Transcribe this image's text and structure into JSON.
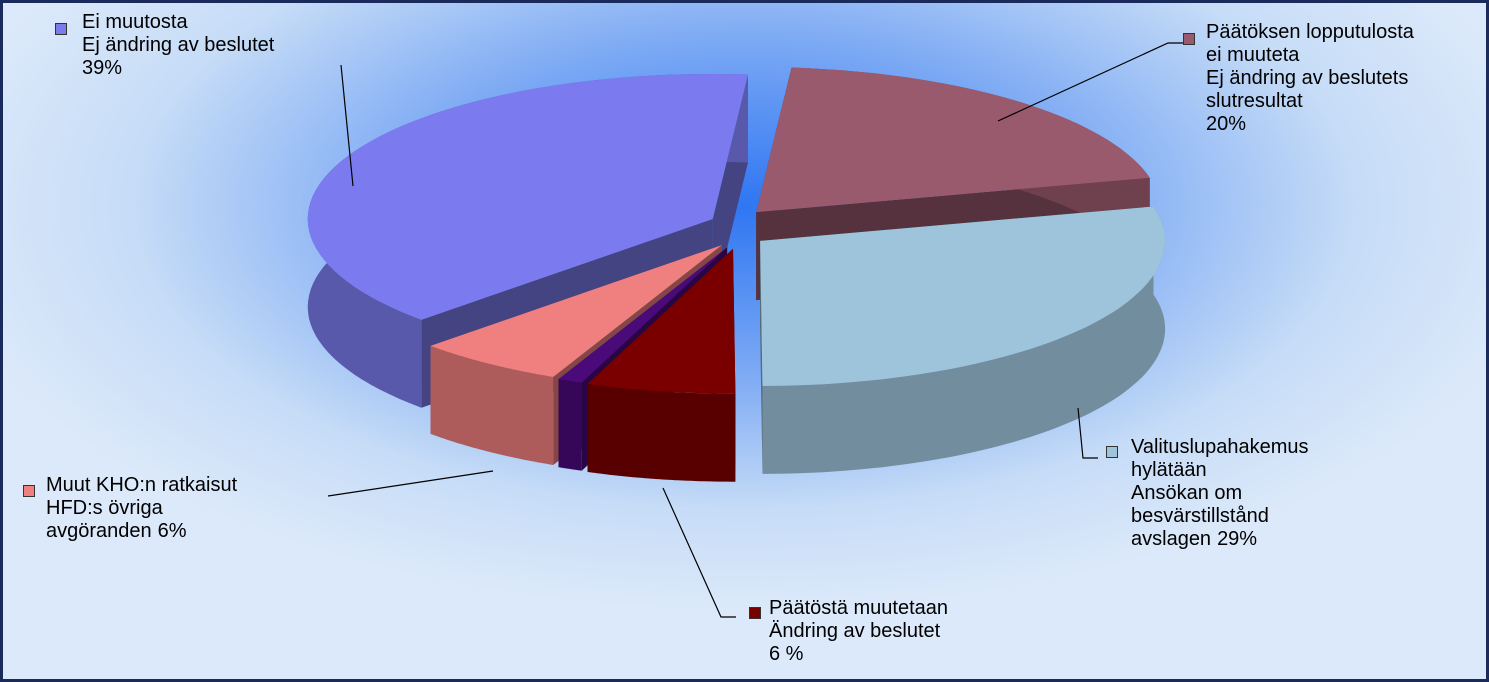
{
  "chart_data": {
    "type": "pie3d",
    "categories": [
      [
        "Päätöksen lopputulosta",
        "ei muuteta",
        "Ej ändring av beslutets",
        "slutresultat"
      ],
      [
        "Valituslupahakemus",
        "hylätään",
        "Ansökan om",
        "besvärstillstånd",
        "avslagen"
      ],
      [
        "Päätöstä muutetaan",
        "Ändring av beslutet"
      ],
      null,
      [
        "Muut KHO:n ratkaisut",
        "HFD:s övriga",
        "avgöranden"
      ],
      [
        "Ei muutosta",
        "Ej ändring av beslutet"
      ]
    ],
    "values": [
      20,
      29,
      6,
      1,
      6,
      39
    ],
    "value_labels": [
      "20%",
      "29%",
      "6 %",
      null,
      "6%",
      "39%"
    ],
    "colors": [
      "#9a5a6e",
      "#9ec4dc",
      "#7a0000",
      "#4b0a7a",
      "#f07f7f",
      "#7b7bef"
    ]
  }
}
